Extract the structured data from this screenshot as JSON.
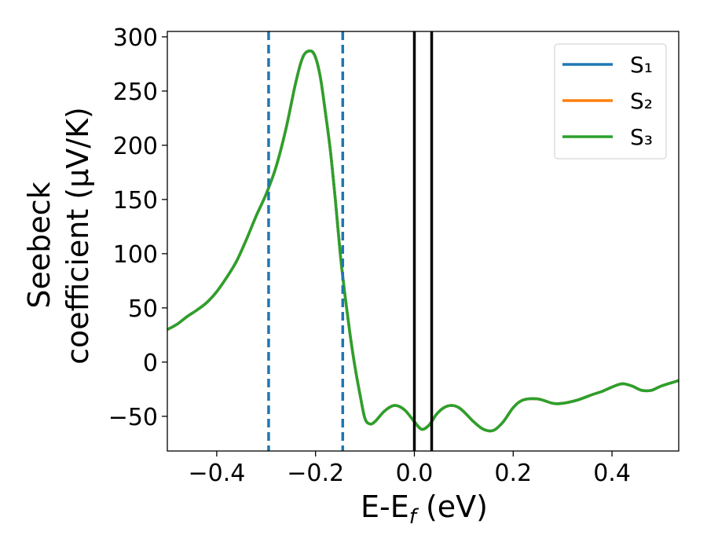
{
  "chart_data": {
    "type": "line",
    "xlabel": "E-E",
    "xlabel_sub": "f",
    "xlabel_unit": " (eV)",
    "ylabel_line1": "Seebeck",
    "ylabel_line2": "coefficient  (μV/K)",
    "xlim": [
      -0.5,
      0.535
    ],
    "ylim": [
      -82,
      305
    ],
    "xticks": [
      -0.4,
      -0.2,
      0.0,
      0.2,
      0.4
    ],
    "xtick_labels": [
      "−0.4",
      "−0.2",
      "0.0",
      "0.2",
      "0.4"
    ],
    "yticks": [
      -50,
      0,
      50,
      100,
      150,
      200,
      250,
      300
    ],
    "ytick_labels": [
      "−50",
      "0",
      "50",
      "100",
      "150",
      "200",
      "250",
      "300"
    ],
    "grid": false,
    "legend_position": "top-right",
    "vlines": [
      {
        "x": -0.295,
        "style": "dashed",
        "color": "#1f77b4"
      },
      {
        "x": -0.145,
        "style": "dashed",
        "color": "#1f77b4"
      },
      {
        "x": 0.0,
        "style": "solid",
        "color": "#000000"
      },
      {
        "x": 0.035,
        "style": "solid",
        "color": "#000000"
      }
    ],
    "x": [
      -0.5,
      -0.48,
      -0.46,
      -0.44,
      -0.42,
      -0.4,
      -0.38,
      -0.36,
      -0.34,
      -0.32,
      -0.3,
      -0.28,
      -0.26,
      -0.24,
      -0.225,
      -0.21,
      -0.2,
      -0.19,
      -0.18,
      -0.17,
      -0.16,
      -0.15,
      -0.14,
      -0.13,
      -0.12,
      -0.11,
      -0.1,
      -0.09,
      -0.08,
      -0.06,
      -0.04,
      -0.02,
      0.0,
      0.015,
      0.03,
      0.045,
      0.06,
      0.075,
      0.09,
      0.105,
      0.12,
      0.14,
      0.16,
      0.18,
      0.2,
      0.22,
      0.25,
      0.28,
      0.3,
      0.33,
      0.36,
      0.38,
      0.4,
      0.42,
      0.44,
      0.46,
      0.48,
      0.5,
      0.535
    ],
    "series": [
      {
        "name": "S₁",
        "color": "#1f77b4",
        "values": [
          30,
          35,
          42,
          48,
          55,
          65,
          78,
          93,
          113,
          135,
          155,
          180,
          215,
          258,
          282,
          287,
          281,
          262,
          230,
          195,
          150,
          100,
          60,
          25,
          -5,
          -30,
          -52,
          -57,
          -55,
          -45,
          -40,
          -44,
          -55,
          -62,
          -58,
          -48,
          -42,
          -40,
          -42,
          -48,
          -55,
          -62,
          -63,
          -55,
          -42,
          -35,
          -34,
          -38,
          -38,
          -35,
          -30,
          -27,
          -23,
          -20,
          -22,
          -26,
          -26,
          -22,
          -17
        ]
      },
      {
        "name": "S₂",
        "color": "#ff7f0e",
        "values": [
          30,
          35,
          42,
          48,
          55,
          65,
          78,
          93,
          113,
          135,
          155,
          180,
          215,
          258,
          282,
          287,
          281,
          262,
          230,
          195,
          150,
          100,
          60,
          25,
          -5,
          -30,
          -52,
          -57,
          -55,
          -45,
          -40,
          -44,
          -55,
          -62,
          -58,
          -48,
          -42,
          -40,
          -42,
          -48,
          -55,
          -62,
          -63,
          -55,
          -42,
          -35,
          -34,
          -38,
          -38,
          -35,
          -30,
          -27,
          -23,
          -20,
          -22,
          -26,
          -26,
          -22,
          -17
        ]
      },
      {
        "name": "S₃",
        "color": "#2ca02c",
        "values": [
          30,
          35,
          42,
          48,
          55,
          65,
          78,
          93,
          113,
          135,
          155,
          180,
          215,
          258,
          282,
          287,
          281,
          262,
          230,
          195,
          150,
          100,
          60,
          25,
          -5,
          -30,
          -52,
          -57,
          -55,
          -45,
          -40,
          -44,
          -55,
          -62,
          -58,
          -48,
          -42,
          -40,
          -42,
          -48,
          -55,
          -62,
          -63,
          -55,
          -42,
          -35,
          -34,
          -38,
          -38,
          -35,
          -30,
          -27,
          -23,
          -20,
          -22,
          -26,
          -26,
          -22,
          -17
        ]
      }
    ]
  }
}
